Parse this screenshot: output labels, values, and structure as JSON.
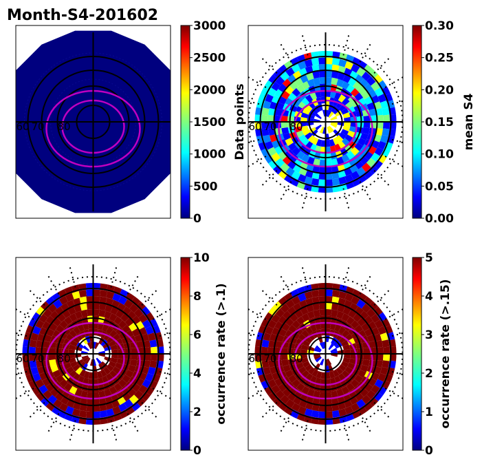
{
  "figure_title": "Month-S4-201602",
  "colormap": [
    "#00007f",
    "#0000ff",
    "#007fff",
    "#00ffff",
    "#7fff7f",
    "#ffff00",
    "#ff7f00",
    "#ff0000",
    "#7f0000"
  ],
  "chart_data": [
    {
      "type": "heatmap",
      "projection": "polar",
      "title": "",
      "colorbar_label": "Data points",
      "clim": [
        0,
        3000
      ],
      "colorbar_ticks": [
        "0",
        "500",
        "1000",
        "1500",
        "2000",
        "2500",
        "3000"
      ],
      "lat_labels": [
        "60",
        "70",
        "80"
      ],
      "field": "uniform",
      "dominant_value_fraction": 0.0
    },
    {
      "type": "heatmap",
      "projection": "polar",
      "title": "",
      "colorbar_label": "mean S4",
      "clim": [
        0.0,
        0.3
      ],
      "colorbar_ticks": [
        "0.00",
        "0.05",
        "0.10",
        "0.15",
        "0.20",
        "0.25",
        "0.30"
      ],
      "lat_labels": [
        "60",
        "70",
        "80"
      ],
      "field": "mixed",
      "dominant_value_fraction": 0.4
    },
    {
      "type": "heatmap",
      "projection": "polar",
      "title": "",
      "colorbar_label": "occurrence rate (>.1)",
      "clim": [
        0,
        10
      ],
      "colorbar_ticks": [
        "0",
        "2",
        "4",
        "6",
        "8",
        "10"
      ],
      "lat_labels": [
        "60",
        "70",
        "80"
      ],
      "field": "saturated",
      "dominant_value_fraction": 1.0
    },
    {
      "type": "heatmap",
      "projection": "polar",
      "title": "",
      "colorbar_label": "occurrence rate (>.15)",
      "clim": [
        0,
        5
      ],
      "colorbar_ticks": [
        "0",
        "1",
        "2",
        "3",
        "4",
        "5"
      ],
      "lat_labels": [
        "60",
        "70",
        "80"
      ],
      "field": "saturated",
      "dominant_value_fraction": 1.0
    }
  ]
}
